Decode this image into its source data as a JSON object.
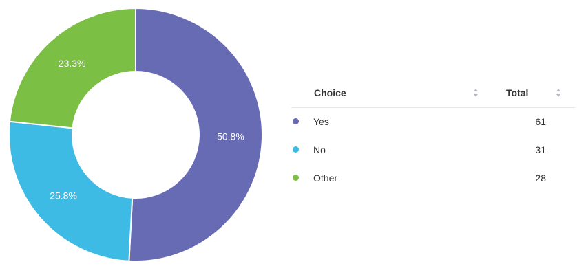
{
  "chart_data": {
    "type": "pie",
    "donut": true,
    "legend": "table-right",
    "slices": [
      {
        "label": "Yes",
        "value": 61,
        "percent_label": "50.8%",
        "color": "#676bb3"
      },
      {
        "label": "No",
        "value": 31,
        "percent_label": "25.8%",
        "color": "#3ebbe4"
      },
      {
        "label": "Other",
        "value": 28,
        "percent_label": "23.3%",
        "color": "#7bbf45"
      }
    ]
  },
  "table": {
    "headers": {
      "choice": "Choice",
      "total": "Total"
    },
    "rows": [
      {
        "choice": "Yes",
        "total": "61",
        "color": "#676bb3"
      },
      {
        "choice": "No",
        "total": "31",
        "color": "#3ebbe4"
      },
      {
        "choice": "Other",
        "total": "28",
        "color": "#7bbf45"
      }
    ]
  }
}
